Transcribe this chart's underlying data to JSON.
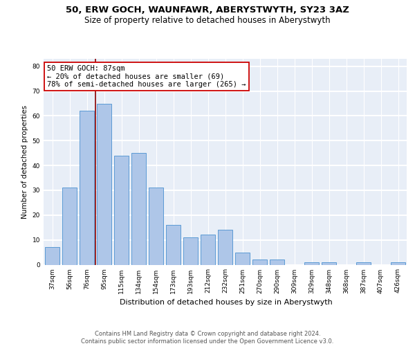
{
  "title": "50, ERW GOCH, WAUNFAWR, ABERYSTWYTH, SY23 3AZ",
  "subtitle": "Size of property relative to detached houses in Aberystwyth",
  "xlabel": "Distribution of detached houses by size in Aberystwyth",
  "ylabel": "Number of detached properties",
  "categories": [
    "37sqm",
    "56sqm",
    "76sqm",
    "95sqm",
    "115sqm",
    "134sqm",
    "154sqm",
    "173sqm",
    "193sqm",
    "212sqm",
    "232sqm",
    "251sqm",
    "270sqm",
    "290sqm",
    "309sqm",
    "329sqm",
    "348sqm",
    "368sqm",
    "387sqm",
    "407sqm",
    "426sqm"
  ],
  "values": [
    7,
    31,
    62,
    65,
    44,
    45,
    31,
    16,
    11,
    12,
    14,
    5,
    2,
    2,
    0,
    1,
    1,
    0,
    1,
    0,
    1
  ],
  "bar_color": "#aec6e8",
  "bar_edgecolor": "#5b9bd5",
  "bar_linewidth": 0.7,
  "vline_bar_index": 2,
  "vline_color": "#8b0000",
  "vline_linewidth": 1.2,
  "annotation_text": "50 ERW GOCH: 87sqm\n← 20% of detached houses are smaller (69)\n78% of semi-detached houses are larger (265) →",
  "annotation_box_edgecolor": "#cc0000",
  "annotation_fontsize": 7.5,
  "ylim": [
    0,
    83
  ],
  "yticks": [
    0,
    10,
    20,
    30,
    40,
    50,
    60,
    70,
    80
  ],
  "background_color": "#e8eef7",
  "grid_color": "white",
  "footer_text": "Contains HM Land Registry data © Crown copyright and database right 2024.\nContains public sector information licensed under the Open Government Licence v3.0.",
  "title_fontsize": 9.5,
  "subtitle_fontsize": 8.5,
  "xlabel_fontsize": 8,
  "ylabel_fontsize": 7.5,
  "tick_fontsize": 6.5,
  "footer_fontsize": 6
}
